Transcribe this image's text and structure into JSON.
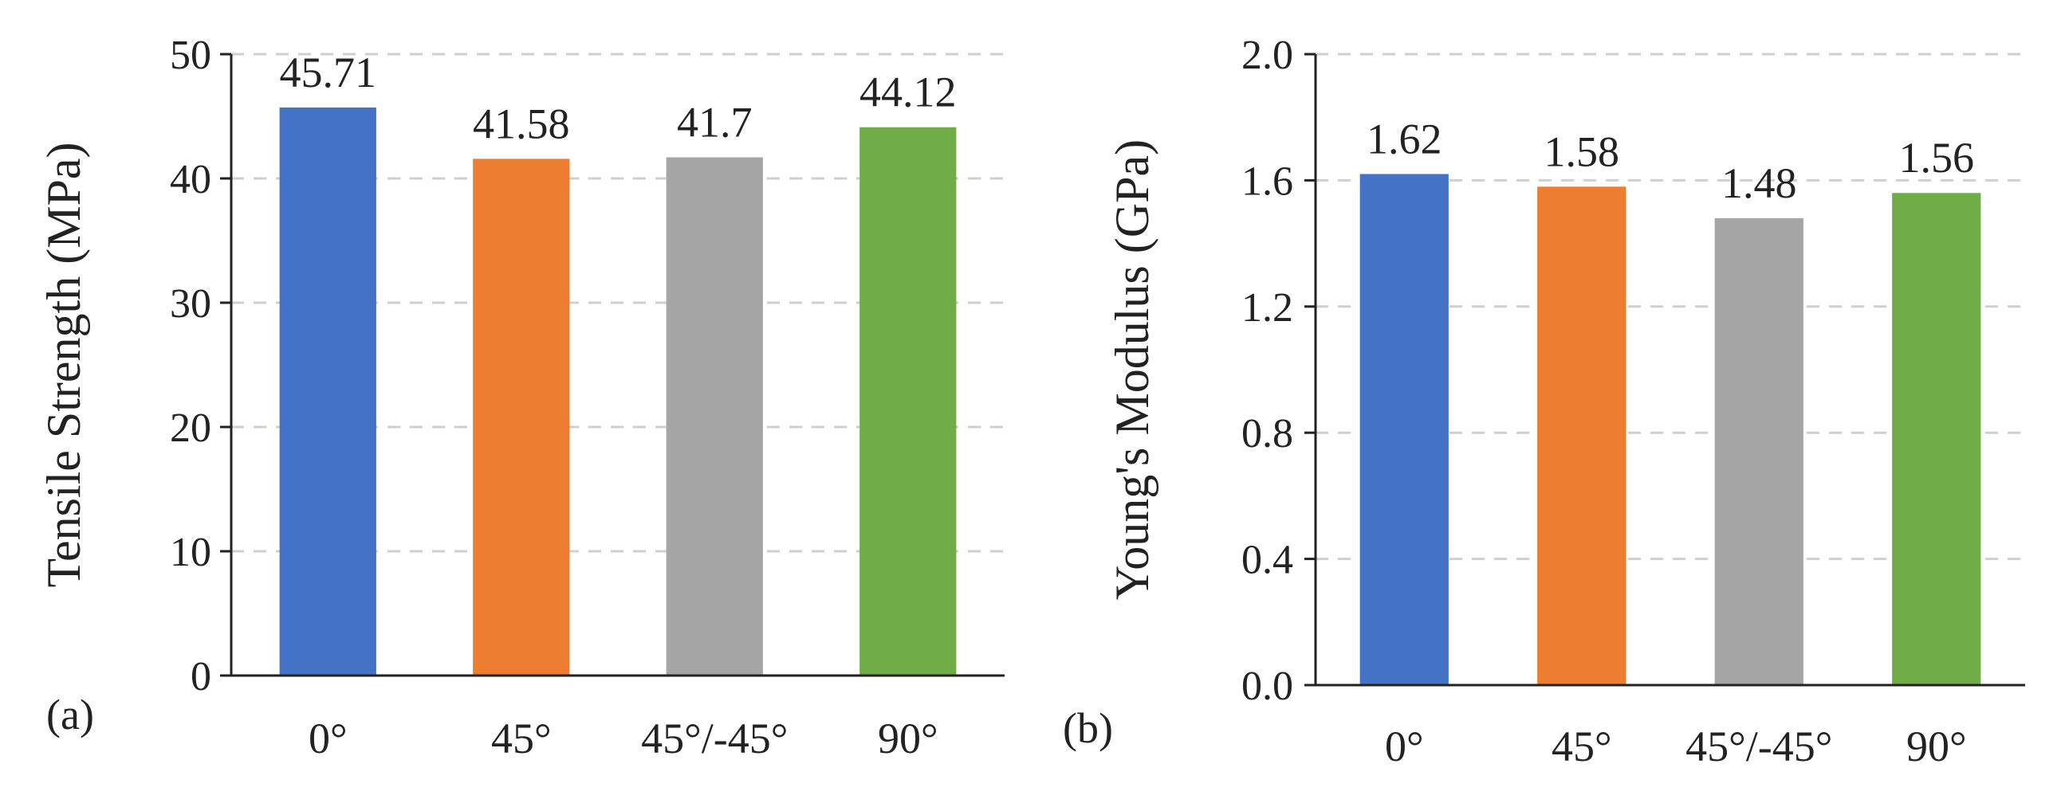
{
  "chart_data": [
    {
      "panel": "(a)",
      "type": "bar",
      "categories": [
        "0°",
        "45°",
        "45°/-45°",
        "90°"
      ],
      "values": [
        45.71,
        41.58,
        41.7,
        44.12
      ],
      "data_labels": [
        "45.71",
        "41.58",
        "41.7",
        "44.12"
      ],
      "colors": [
        "#4472C4",
        "#ED7D31",
        "#A5A5A5",
        "#70AD47"
      ],
      "ylabel": "Tensile Strength (MPa)",
      "xlabel": "",
      "ylim": [
        0,
        50
      ],
      "yticks": [
        0,
        10,
        20,
        30,
        40,
        50
      ],
      "ytick_labels": [
        "0",
        "10",
        "20",
        "30",
        "40",
        "50"
      ],
      "grid": true
    },
    {
      "panel": "(b)",
      "type": "bar",
      "categories": [
        "0°",
        "45°",
        "45°/-45°",
        "90°"
      ],
      "values": [
        1.62,
        1.58,
        1.48,
        1.56
      ],
      "data_labels": [
        "1.62",
        "1.58",
        "1.48",
        "1.56"
      ],
      "colors": [
        "#4472C4",
        "#ED7D31",
        "#A5A5A5",
        "#70AD47"
      ],
      "ylabel": "Young's Modulus (GPa)",
      "xlabel": "",
      "ylim": [
        0,
        2.0
      ],
      "yticks": [
        0,
        0.4,
        0.8,
        1.2,
        1.6,
        2.0
      ],
      "ytick_labels": [
        "0.0",
        "0.4",
        "0.8",
        "1.2",
        "1.6",
        "2.0"
      ],
      "grid": true
    }
  ]
}
